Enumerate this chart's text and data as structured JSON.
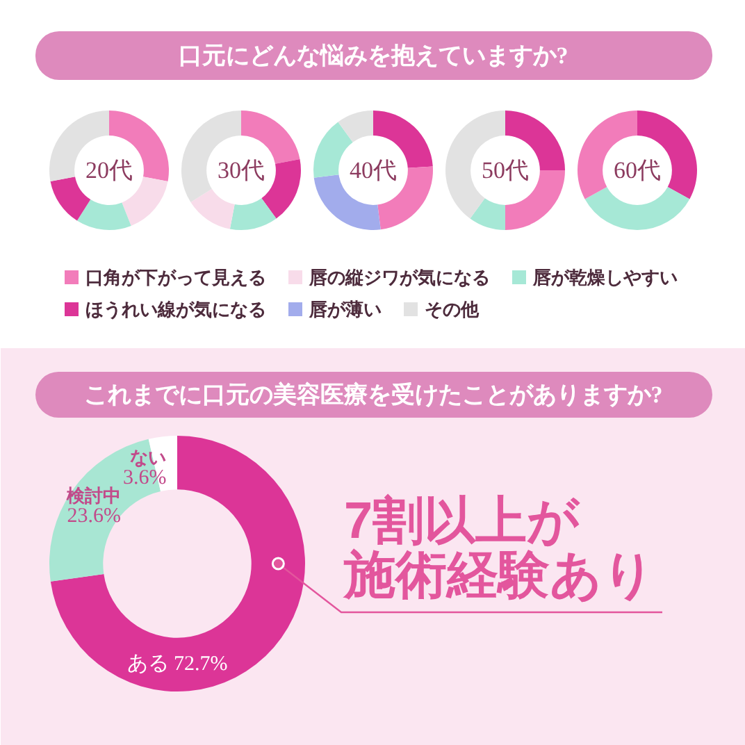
{
  "chart_data": [
    {
      "type": "donut",
      "categories": [
        "口角が下がって見える",
        "唇の縦ジワが気になる",
        "唇が乾燥しやすい",
        "ほうれい線が気になる",
        "唇が薄い",
        "その他"
      ],
      "values": [
        28,
        16,
        15,
        13,
        0,
        28
      ],
      "colors": [
        "#f27cba",
        "#f8dcea",
        "#a6e8d6",
        "#dc3597",
        "#a2acec",
        "#e2e2e2"
      ],
      "annotations": [
        "20代"
      ],
      "legend": "bottom"
    },
    {
      "type": "donut",
      "categories": [
        null,
        null,
        null,
        null,
        null
      ],
      "values": [
        22,
        18,
        13,
        13,
        34
      ],
      "colors": [
        "#f27cba",
        "#dc3597",
        "#a6e8d6",
        "#f8dcea",
        "#e2e2e2"
      ],
      "annotations": [
        "30代"
      ]
    },
    {
      "type": "donut",
      "title": "口元にどんな悩みを抱えていますか?",
      "categories": [
        null,
        null,
        null,
        null,
        null
      ],
      "values": [
        24,
        24,
        25,
        17,
        10
      ],
      "colors": [
        "#dc3597",
        "#f27cba",
        "#a2acec",
        "#a6e8d6",
        "#e2e2e2"
      ],
      "annotations": [
        "40代"
      ]
    },
    {
      "type": "donut",
      "categories": [
        null,
        null,
        null,
        null
      ],
      "values": [
        25,
        25,
        10,
        40
      ],
      "colors": [
        "#dc3597",
        "#f27cba",
        "#a6e8d6",
        "#e2e2e2"
      ],
      "annotations": [
        "50代"
      ]
    },
    {
      "type": "donut",
      "categories": [
        null,
        null,
        null
      ],
      "values": [
        33,
        34,
        33
      ],
      "colors": [
        "#dc3597",
        "#a6e8d6",
        "#f27cba"
      ],
      "annotations": [
        "60代"
      ]
    },
    {
      "type": "donut",
      "title": "これまでに口元の美容医療を受けたことがありますか?",
      "categories": [
        "ある",
        "検討中",
        "ない"
      ],
      "values": [
        72.7,
        23.6,
        3.6
      ],
      "colors": [
        "#dc3597",
        "#a8e6d3",
        "#ffffff"
      ],
      "value_labels": [
        "72.7%",
        "23.6%",
        "3.6%"
      ],
      "annotations": [
        {
          "text": "7割以上が施術経験あり",
          "x": "ある"
        }
      ]
    }
  ]
}
